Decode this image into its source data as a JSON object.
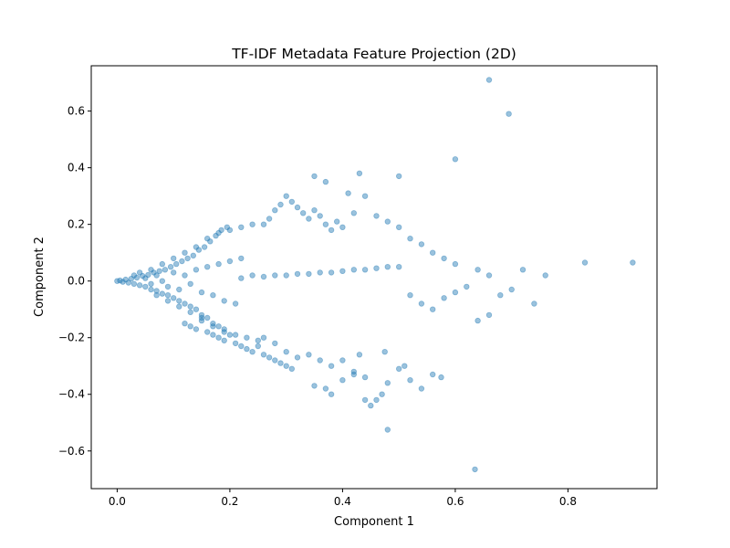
{
  "chart_data": {
    "type": "scatter",
    "title": "TF-IDF Metadata Feature Projection (2D)",
    "xlabel": "Component 1",
    "ylabel": "Component 2",
    "xlim": [
      -0.046,
      0.958
    ],
    "ylim": [
      -0.733,
      0.76
    ],
    "xticks": [
      0.0,
      0.2,
      0.4,
      0.6,
      0.8
    ],
    "xtick_labels": [
      "0.0",
      "0.2",
      "0.4",
      "0.6",
      "0.8"
    ],
    "yticks": [
      -0.6,
      -0.4,
      -0.2,
      0.0,
      0.2,
      0.4,
      0.6
    ],
    "ytick_labels": [
      "−0.6",
      "−0.4",
      "−0.2",
      "0.0",
      "0.2",
      "0.4",
      "0.6"
    ],
    "grid": false,
    "point_color": "#1f77b4",
    "point_alpha": 0.45,
    "series": [
      {
        "values": [
          [
            0.0,
            0.0
          ],
          [
            0.005,
            0.002
          ],
          [
            0.01,
            -0.003
          ],
          [
            0.015,
            0.005
          ],
          [
            0.02,
            -0.006
          ],
          [
            0.025,
            0.008
          ],
          [
            0.03,
            -0.01
          ],
          [
            0.035,
            0.012
          ],
          [
            0.04,
            -0.015
          ],
          [
            0.045,
            0.018
          ],
          [
            0.05,
            -0.02
          ],
          [
            0.055,
            0.022
          ],
          [
            0.06,
            -0.03
          ],
          [
            0.065,
            0.03
          ],
          [
            0.07,
            -0.035
          ],
          [
            0.075,
            0.035
          ],
          [
            0.08,
            -0.045
          ],
          [
            0.085,
            0.04
          ],
          [
            0.09,
            -0.05
          ],
          [
            0.095,
            0.05
          ],
          [
            0.1,
            -0.06
          ],
          [
            0.105,
            0.06
          ],
          [
            0.11,
            -0.07
          ],
          [
            0.115,
            0.07
          ],
          [
            0.12,
            -0.08
          ],
          [
            0.125,
            0.08
          ],
          [
            0.13,
            -0.09
          ],
          [
            0.135,
            0.09
          ],
          [
            0.14,
            -0.1
          ],
          [
            0.145,
            0.11
          ],
          [
            0.15,
            -0.12
          ],
          [
            0.155,
            0.12
          ],
          [
            0.16,
            -0.13
          ],
          [
            0.165,
            0.14
          ],
          [
            0.17,
            -0.15
          ],
          [
            0.175,
            0.16
          ],
          [
            0.18,
            -0.16
          ],
          [
            0.185,
            0.18
          ],
          [
            0.19,
            -0.17
          ],
          [
            0.195,
            0.19
          ],
          [
            0.03,
            0.02
          ],
          [
            0.04,
            0.03
          ],
          [
            0.05,
            0.01
          ],
          [
            0.06,
            -0.01
          ],
          [
            0.07,
            0.02
          ],
          [
            0.08,
            0.0
          ],
          [
            0.09,
            -0.02
          ],
          [
            0.1,
            0.03
          ],
          [
            0.11,
            -0.03
          ],
          [
            0.12,
            0.02
          ],
          [
            0.13,
            -0.01
          ],
          [
            0.14,
            0.04
          ],
          [
            0.15,
            -0.04
          ],
          [
            0.16,
            0.05
          ],
          [
            0.17,
            -0.05
          ],
          [
            0.18,
            0.06
          ],
          [
            0.19,
            -0.07
          ],
          [
            0.2,
            0.07
          ],
          [
            0.21,
            -0.08
          ],
          [
            0.22,
            0.08
          ],
          [
            0.06,
            0.04
          ],
          [
            0.07,
            -0.05
          ],
          [
            0.08,
            0.06
          ],
          [
            0.09,
            -0.07
          ],
          [
            0.1,
            0.08
          ],
          [
            0.11,
            -0.09
          ],
          [
            0.12,
            0.1
          ],
          [
            0.13,
            -0.11
          ],
          [
            0.14,
            0.12
          ],
          [
            0.15,
            -0.13
          ],
          [
            0.16,
            0.15
          ],
          [
            0.17,
            -0.16
          ],
          [
            0.18,
            0.17
          ],
          [
            0.19,
            -0.18
          ],
          [
            0.2,
            0.18
          ],
          [
            0.21,
            -0.19
          ],
          [
            0.22,
            0.19
          ],
          [
            0.23,
            -0.2
          ],
          [
            0.24,
            0.2
          ],
          [
            0.25,
            -0.21
          ],
          [
            0.12,
            -0.15
          ],
          [
            0.13,
            -0.16
          ],
          [
            0.14,
            -0.17
          ],
          [
            0.15,
            -0.14
          ],
          [
            0.16,
            -0.18
          ],
          [
            0.17,
            -0.19
          ],
          [
            0.18,
            -0.2
          ],
          [
            0.19,
            -0.21
          ],
          [
            0.2,
            -0.19
          ],
          [
            0.21,
            -0.22
          ],
          [
            0.22,
            -0.23
          ],
          [
            0.23,
            -0.24
          ],
          [
            0.24,
            -0.25
          ],
          [
            0.25,
            -0.23
          ],
          [
            0.26,
            -0.26
          ],
          [
            0.27,
            -0.27
          ],
          [
            0.28,
            -0.28
          ],
          [
            0.29,
            -0.29
          ],
          [
            0.3,
            -0.3
          ],
          [
            0.31,
            -0.31
          ],
          [
            0.22,
            0.01
          ],
          [
            0.24,
            0.02
          ],
          [
            0.26,
            0.015
          ],
          [
            0.28,
            0.02
          ],
          [
            0.3,
            0.02
          ],
          [
            0.32,
            0.025
          ],
          [
            0.34,
            0.025
          ],
          [
            0.36,
            0.03
          ],
          [
            0.38,
            0.03
          ],
          [
            0.4,
            0.035
          ],
          [
            0.42,
            0.04
          ],
          [
            0.44,
            0.04
          ],
          [
            0.46,
            0.045
          ],
          [
            0.48,
            0.05
          ],
          [
            0.5,
            0.05
          ],
          [
            0.26,
            0.2
          ],
          [
            0.27,
            0.22
          ],
          [
            0.28,
            0.25
          ],
          [
            0.29,
            0.27
          ],
          [
            0.3,
            0.3
          ],
          [
            0.31,
            0.28
          ],
          [
            0.32,
            0.26
          ],
          [
            0.33,
            0.24
          ],
          [
            0.34,
            0.22
          ],
          [
            0.35,
            0.25
          ],
          [
            0.36,
            0.23
          ],
          [
            0.37,
            0.2
          ],
          [
            0.38,
            0.18
          ],
          [
            0.39,
            0.21
          ],
          [
            0.4,
            0.19
          ],
          [
            0.26,
            -0.2
          ],
          [
            0.28,
            -0.22
          ],
          [
            0.3,
            -0.25
          ],
          [
            0.32,
            -0.27
          ],
          [
            0.34,
            -0.26
          ],
          [
            0.36,
            -0.28
          ],
          [
            0.38,
            -0.3
          ],
          [
            0.4,
            -0.28
          ],
          [
            0.42,
            -0.32
          ],
          [
            0.44,
            -0.34
          ],
          [
            0.35,
            0.37
          ],
          [
            0.37,
            0.35
          ],
          [
            0.43,
            0.38
          ],
          [
            0.5,
            0.37
          ],
          [
            0.41,
            0.31
          ],
          [
            0.44,
            0.3
          ],
          [
            0.42,
            0.24
          ],
          [
            0.46,
            0.23
          ],
          [
            0.48,
            0.21
          ],
          [
            0.5,
            0.19
          ],
          [
            0.52,
            0.15
          ],
          [
            0.54,
            0.13
          ],
          [
            0.56,
            0.1
          ],
          [
            0.58,
            0.08
          ],
          [
            0.6,
            0.06
          ],
          [
            0.52,
            -0.05
          ],
          [
            0.54,
            -0.08
          ],
          [
            0.56,
            -0.1
          ],
          [
            0.58,
            -0.06
          ],
          [
            0.6,
            -0.04
          ],
          [
            0.62,
            -0.02
          ],
          [
            0.64,
            0.04
          ],
          [
            0.66,
            0.02
          ],
          [
            0.68,
            -0.05
          ],
          [
            0.7,
            -0.03
          ],
          [
            0.72,
            0.04
          ],
          [
            0.74,
            -0.08
          ],
          [
            0.76,
            0.02
          ],
          [
            0.64,
            -0.14
          ],
          [
            0.66,
            -0.12
          ],
          [
            0.35,
            -0.37
          ],
          [
            0.37,
            -0.38
          ],
          [
            0.38,
            -0.4
          ],
          [
            0.4,
            -0.35
          ],
          [
            0.42,
            -0.33
          ],
          [
            0.44,
            -0.42
          ],
          [
            0.45,
            -0.44
          ],
          [
            0.46,
            -0.42
          ],
          [
            0.47,
            -0.4
          ],
          [
            0.48,
            -0.36
          ],
          [
            0.5,
            -0.31
          ],
          [
            0.51,
            -0.3
          ],
          [
            0.52,
            -0.35
          ],
          [
            0.54,
            -0.38
          ],
          [
            0.56,
            -0.33
          ],
          [
            0.6,
            0.43
          ],
          [
            0.66,
            0.71
          ],
          [
            0.695,
            0.59
          ],
          [
            0.83,
            0.065
          ],
          [
            0.915,
            0.065
          ],
          [
            0.48,
            -0.525
          ],
          [
            0.635,
            -0.665
          ],
          [
            0.575,
            -0.34
          ],
          [
            0.475,
            -0.25
          ],
          [
            0.43,
            -0.26
          ]
        ]
      }
    ]
  }
}
